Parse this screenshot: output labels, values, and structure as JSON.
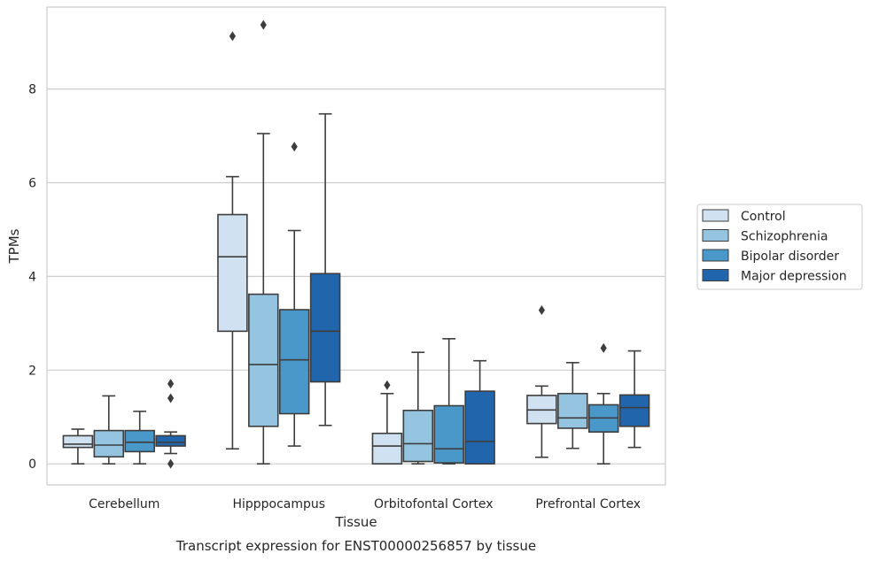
{
  "chart_data": {
    "type": "box",
    "title": "",
    "caption": "Transcript expression for ENST00000256857 by tissue",
    "xlabel": "Tissue",
    "ylabel": "TPMs",
    "ylim": [
      -0.45,
      9.75
    ],
    "yticks": [
      0,
      2,
      4,
      6,
      8
    ],
    "grid": "horizontal",
    "legend_position": "right",
    "categories": [
      "Cerebellum",
      "Hipppocampus",
      "Orbitofontal Cortex",
      "Prefrontal Cortex"
    ],
    "series": [
      {
        "name": "Control",
        "color": "#d0e1f2",
        "boxes": [
          {
            "whisker_low": 0.0,
            "q1": 0.35,
            "median": 0.42,
            "q3": 0.6,
            "whisker_high": 0.74,
            "outliers": []
          },
          {
            "whisker_low": 0.32,
            "q1": 2.83,
            "median": 4.42,
            "q3": 5.32,
            "whisker_high": 6.13,
            "outliers": [
              9.13
            ]
          },
          {
            "whisker_low": 0.0,
            "q1": 0.0,
            "median": 0.38,
            "q3": 0.65,
            "whisker_high": 1.5,
            "outliers": [
              1.68
            ]
          },
          {
            "whisker_low": 0.14,
            "q1": 0.86,
            "median": 1.15,
            "q3": 1.46,
            "whisker_high": 1.66,
            "outliers": [
              3.28
            ]
          }
        ]
      },
      {
        "name": "Schizophrenia",
        "color": "#94c4df",
        "boxes": [
          {
            "whisker_low": 0.0,
            "q1": 0.15,
            "median": 0.4,
            "q3": 0.71,
            "whisker_high": 1.45,
            "outliers": []
          },
          {
            "whisker_low": 0.0,
            "q1": 0.8,
            "median": 2.12,
            "q3": 3.62,
            "whisker_high": 7.05,
            "outliers": [
              9.37
            ]
          },
          {
            "whisker_low": 0.0,
            "q1": 0.05,
            "median": 0.43,
            "q3": 1.14,
            "whisker_high": 2.38,
            "outliers": []
          },
          {
            "whisker_low": 0.33,
            "q1": 0.76,
            "median": 0.98,
            "q3": 1.5,
            "whisker_high": 2.16,
            "outliers": []
          }
        ]
      },
      {
        "name": "Bipolar disorder",
        "color": "#4a98c9",
        "boxes": [
          {
            "whisker_low": 0.0,
            "q1": 0.26,
            "median": 0.46,
            "q3": 0.71,
            "whisker_high": 1.12,
            "outliers": []
          },
          {
            "whisker_low": 0.38,
            "q1": 1.07,
            "median": 2.22,
            "q3": 3.29,
            "whisker_high": 4.98,
            "outliers": [
              6.77
            ]
          },
          {
            "whisker_low": 0.0,
            "q1": 0.02,
            "median": 0.32,
            "q3": 1.24,
            "whisker_high": 2.67,
            "outliers": []
          },
          {
            "whisker_low": 0.0,
            "q1": 0.68,
            "median": 0.98,
            "q3": 1.26,
            "whisker_high": 1.5,
            "outliers": [
              2.47
            ]
          }
        ]
      },
      {
        "name": "Major depression",
        "color": "#2166ac",
        "boxes": [
          {
            "whisker_low": 0.22,
            "q1": 0.38,
            "median": 0.46,
            "q3": 0.6,
            "whisker_high": 0.68,
            "outliers": [
              1.71,
              1.4,
              0.0
            ]
          },
          {
            "whisker_low": 0.82,
            "q1": 1.75,
            "median": 2.83,
            "q3": 4.06,
            "whisker_high": 7.47,
            "outliers": []
          },
          {
            "whisker_low": 0.0,
            "q1": 0.0,
            "median": 0.48,
            "q3": 1.55,
            "whisker_high": 2.2,
            "outliers": []
          },
          {
            "whisker_low": 0.35,
            "q1": 0.8,
            "median": 1.2,
            "q3": 1.47,
            "whisker_high": 2.41,
            "outliers": []
          }
        ]
      }
    ]
  }
}
